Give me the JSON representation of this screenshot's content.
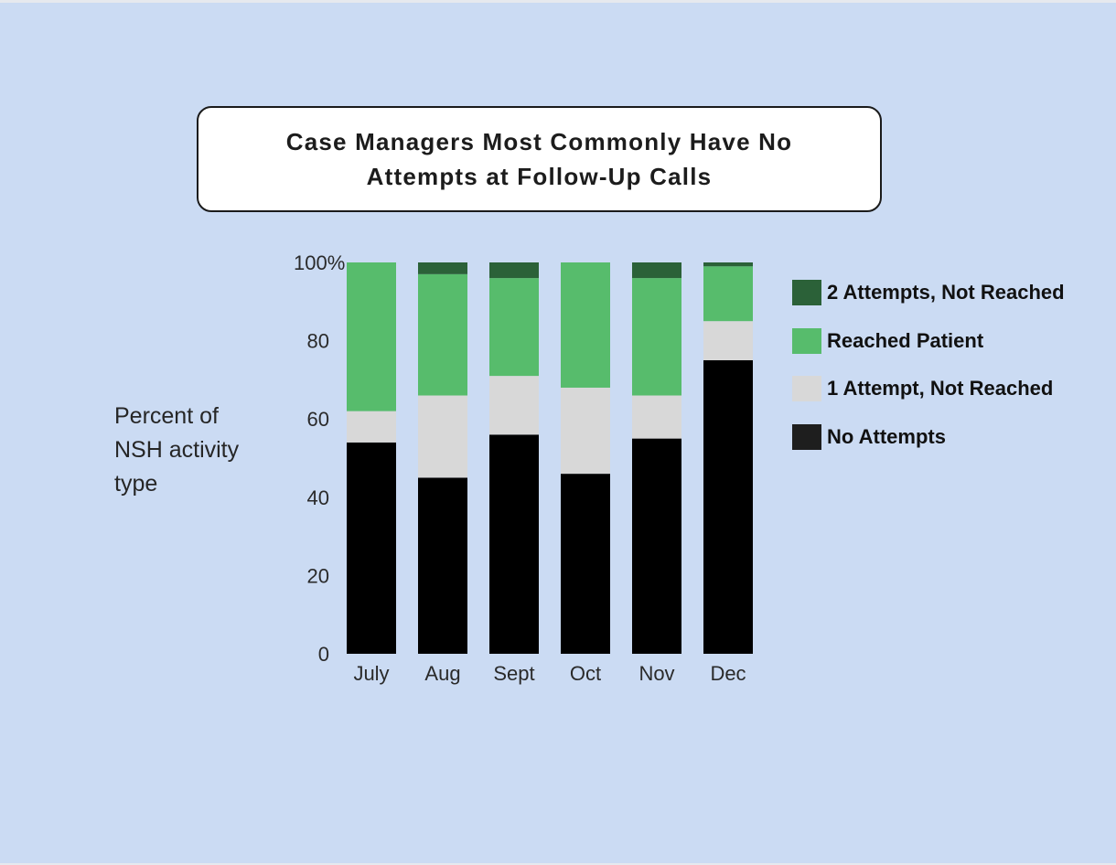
{
  "chart_data": {
    "type": "bar",
    "stacked": true,
    "title": "Case Managers Most Commonly Have No Attempts at Follow-Up Calls",
    "ylabel": "Percent of NSH activity type",
    "xlabel": "",
    "ylim": [
      0,
      100
    ],
    "yticks": [
      "0",
      "20",
      "40",
      "60",
      "80",
      "100%"
    ],
    "categories": [
      "July",
      "Aug",
      "Sept",
      "Oct",
      "Nov",
      "Dec"
    ],
    "series": [
      {
        "name": "No Attempts",
        "color": "#000000",
        "values": [
          54,
          45,
          56,
          46,
          55,
          75
        ]
      },
      {
        "name": "1 Attempt, Not Reached",
        "color": "#d8d8d8",
        "values": [
          8,
          21,
          15,
          22,
          11,
          10
        ]
      },
      {
        "name": "Reached Patient",
        "color": "#57bc6c",
        "values": [
          38,
          31,
          25,
          32,
          30,
          14
        ]
      },
      {
        "name": "2 Attempts, Not Reached",
        "color": "#2b6138",
        "values": [
          0,
          3,
          4,
          0,
          4,
          1
        ]
      }
    ],
    "legend": {
      "placement": "right",
      "order": [
        "2 Attempts, Not Reached",
        "Reached Patient",
        "1 Attempt, Not Reached",
        "No Attempts"
      ],
      "swatch_colors": [
        "#2b6138",
        "#57bc6c",
        "#d8d8d8",
        "#1e1e1e"
      ]
    },
    "grid": false
  }
}
